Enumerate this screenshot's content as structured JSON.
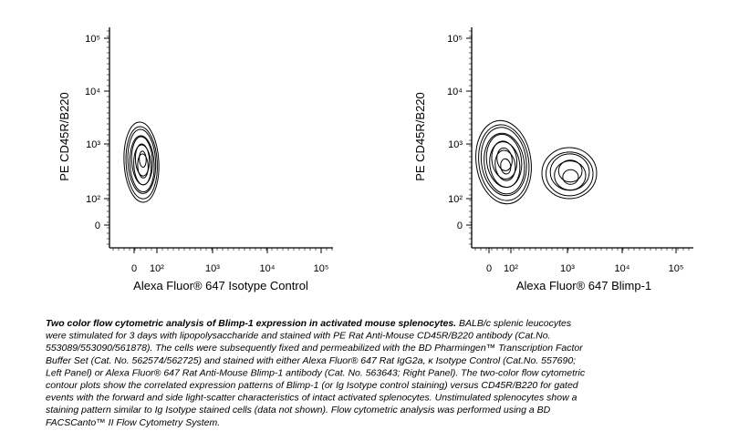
{
  "panels": [
    {
      "y_label": "PE  CD45R/B220",
      "x_label": "Alexa Fluor® 647 Isotype Control",
      "y_ticks": [
        "10⁵",
        "10⁴",
        "10³",
        "10²",
        "0"
      ],
      "x_ticks": [
        "0",
        "10²",
        "10³",
        "10⁴",
        "10⁵"
      ]
    },
    {
      "y_label": "PE  CD45R/B220",
      "x_label": "Alexa Fluor® 647  Blimp-1",
      "y_ticks": [
        "10⁵",
        "10⁴",
        "10³",
        "10²",
        "0"
      ],
      "x_ticks": [
        "0",
        "10²",
        "10³",
        "10⁴",
        "10⁵"
      ]
    }
  ],
  "caption": {
    "title": "Two color flow cytometric analysis of Blimp-1 expression in activated mouse splenocytes.",
    "lines": [
      " BALB/c splenic leucocytes",
      "were stimulated for 3 days with lipopolysaccharide and stained with PE Rat Anti-Mouse CD45R/B220 antibody (Cat.No.",
      "553089/553090/561878). The cells were subsequently fixed and permeabilized with the BD Pharmingen™ Transcription Factor",
      "Buffer Set (Cat. No. 562574/562725) and stained with either Alexa Fluor® 647 Rat IgG2a, κ Isotype Control (Cat.No. 557690;",
      "Left Panel) or Alexa Fluor® 647 Rat Anti-Mouse Blimp-1 antibody (Cat. No. 563643; Right Panel). The two-color flow cytometric",
      "contour plots show the correlated expression patterns of Blimp-1 (or Ig Isotype control staining) versus CD45R/B220 for gated",
      "events with the forward and side light-scatter characteristics of intact activated splenocytes. Unstimulated splenocytes show a",
      "staining pattern similar to Ig Isotype stained cells (data not shown). Flow cytometric analysis was performed using a BD",
      "FACSCanto™ II Flow Cytometry System."
    ]
  }
}
